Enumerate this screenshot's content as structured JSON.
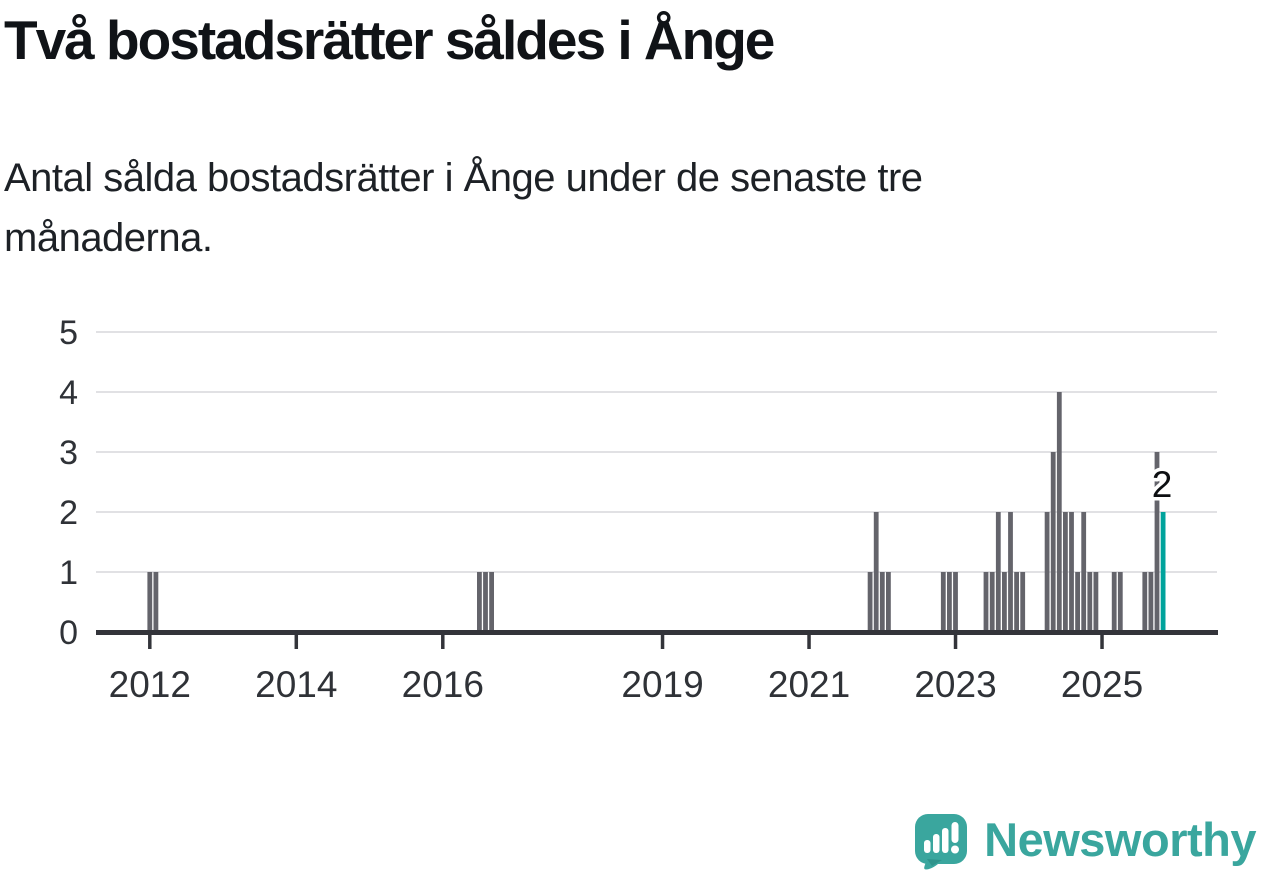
{
  "title": "Två bostadsrätter såldes i Ånge",
  "subtitle": {
    "full": "Antal sålda bostadsrätter i Ånge under de senaste tre månaderna.",
    "lines": [
      "Antal sålda bostadsrätter i Ånge under de senaste tre",
      "månaderna."
    ]
  },
  "branding": {
    "logo_text": "Newsworthy",
    "logo_color": "#3aa69e"
  },
  "colors": {
    "bar": "#64646b",
    "highlight": "#00a39c",
    "grid": "#e1e1e4",
    "axis": "#33343a",
    "axis_text": "#2f3237",
    "value_label": "#0d0f12",
    "background": "#ffffff"
  },
  "chart_data": {
    "type": "bar",
    "title": "Två bostadsrätter såldes i Ånge",
    "subtitle": "Antal sålda bostadsrätter i Ånge under de senaste tre månaderna.",
    "ylabel": "",
    "xlabel": "",
    "ylim": [
      0,
      5
    ],
    "yticks": [
      "0",
      "1",
      "2",
      "3",
      "4",
      "5"
    ],
    "xticks": [
      "2012",
      "2014",
      "2016",
      "2019",
      "2021",
      "2023",
      "2025"
    ],
    "grid": true,
    "legend": "none",
    "highlight_label": "2",
    "points": [
      {
        "month": "2012-01",
        "value": 1
      },
      {
        "month": "2012-02",
        "value": 1
      },
      {
        "month": "2016-07",
        "value": 1
      },
      {
        "month": "2016-08",
        "value": 1
      },
      {
        "month": "2016-09",
        "value": 1
      },
      {
        "month": "2021-11",
        "value": 1
      },
      {
        "month": "2021-12",
        "value": 2
      },
      {
        "month": "2022-01",
        "value": 1
      },
      {
        "month": "2022-02",
        "value": 1
      },
      {
        "month": "2022-11",
        "value": 1
      },
      {
        "month": "2022-12",
        "value": 1
      },
      {
        "month": "2023-01",
        "value": 1
      },
      {
        "month": "2023-06",
        "value": 1
      },
      {
        "month": "2023-07",
        "value": 1
      },
      {
        "month": "2023-08",
        "value": 2
      },
      {
        "month": "2023-09",
        "value": 1
      },
      {
        "month": "2023-10",
        "value": 2
      },
      {
        "month": "2023-11",
        "value": 1
      },
      {
        "month": "2023-12",
        "value": 1
      },
      {
        "month": "2024-04",
        "value": 2
      },
      {
        "month": "2024-05",
        "value": 3
      },
      {
        "month": "2024-06",
        "value": 4
      },
      {
        "month": "2024-07",
        "value": 2
      },
      {
        "month": "2024-08",
        "value": 2
      },
      {
        "month": "2024-09",
        "value": 1
      },
      {
        "month": "2024-10",
        "value": 2
      },
      {
        "month": "2024-11",
        "value": 1
      },
      {
        "month": "2024-12",
        "value": 1
      },
      {
        "month": "2025-03",
        "value": 1
      },
      {
        "month": "2025-04",
        "value": 1
      },
      {
        "month": "2025-08",
        "value": 1
      },
      {
        "month": "2025-09",
        "value": 1
      },
      {
        "month": "2025-10",
        "value": 3
      },
      {
        "month": "2025-11",
        "value": 2,
        "highlight": true,
        "label": "2"
      }
    ]
  }
}
